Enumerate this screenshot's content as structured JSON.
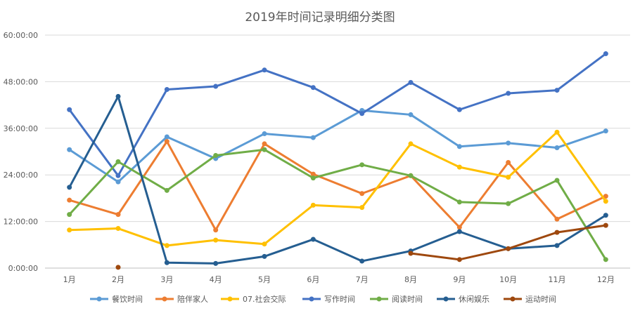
{
  "chart_data": {
    "type": "line",
    "title": "2019年时间记录明细分类图",
    "xlabel": "",
    "ylabel": "",
    "categories": [
      "1月",
      "2月",
      "3月",
      "4月",
      "5月",
      "6月",
      "7月",
      "8月",
      "9月",
      "10月",
      "11月",
      "12月"
    ],
    "y_tick_labels": [
      "0:00:00",
      "12:00:00",
      "24:00:00",
      "36:00:00",
      "48:00:00",
      "60:00:00"
    ],
    "y_unit": "hours",
    "ylim": [
      0,
      60
    ],
    "y_ticks": [
      0,
      12,
      24,
      36,
      48,
      60
    ],
    "grid": true,
    "legend_position": "bottom",
    "series": [
      {
        "name": "餐饮时间",
        "color": "#5b9bd5",
        "values": [
          30.5,
          22.2,
          33.8,
          28.2,
          34.6,
          33.6,
          40.6,
          39.5,
          31.3,
          32.2,
          31.0,
          35.3
        ]
      },
      {
        "name": "陪伴家人",
        "color": "#ed7d31",
        "values": [
          17.5,
          13.8,
          32.6,
          9.8,
          32.0,
          24.2,
          19.2,
          23.8,
          10.5,
          27.2,
          12.6,
          18.5
        ]
      },
      {
        "name": "07.社会交际",
        "color": "#ffc000",
        "values": [
          9.8,
          10.2,
          5.8,
          7.2,
          6.2,
          16.2,
          15.6,
          32.0,
          26.0,
          23.4,
          35.0,
          17.2
        ]
      },
      {
        "name": "写作时间",
        "color": "#4472c4",
        "values": [
          40.8,
          23.8,
          46.0,
          46.8,
          51.0,
          46.5,
          39.8,
          47.8,
          40.8,
          45.0,
          45.8,
          55.2
        ]
      },
      {
        "name": "阅读时间",
        "color": "#70ad47",
        "values": [
          13.8,
          27.4,
          20.0,
          29.0,
          30.5,
          23.2,
          26.6,
          23.8,
          17.0,
          16.6,
          22.6,
          2.2
        ]
      },
      {
        "name": "休闲娱乐",
        "color": "#255e91",
        "values": [
          20.8,
          44.2,
          1.4,
          1.2,
          3.0,
          7.4,
          1.8,
          4.4,
          9.4,
          5.0,
          5.8,
          13.6
        ]
      },
      {
        "name": "运动时间",
        "color": "#9e480e",
        "values": [
          null,
          0.2,
          null,
          null,
          null,
          null,
          null,
          3.8,
          2.2,
          5.0,
          9.2,
          11.0
        ]
      }
    ]
  }
}
